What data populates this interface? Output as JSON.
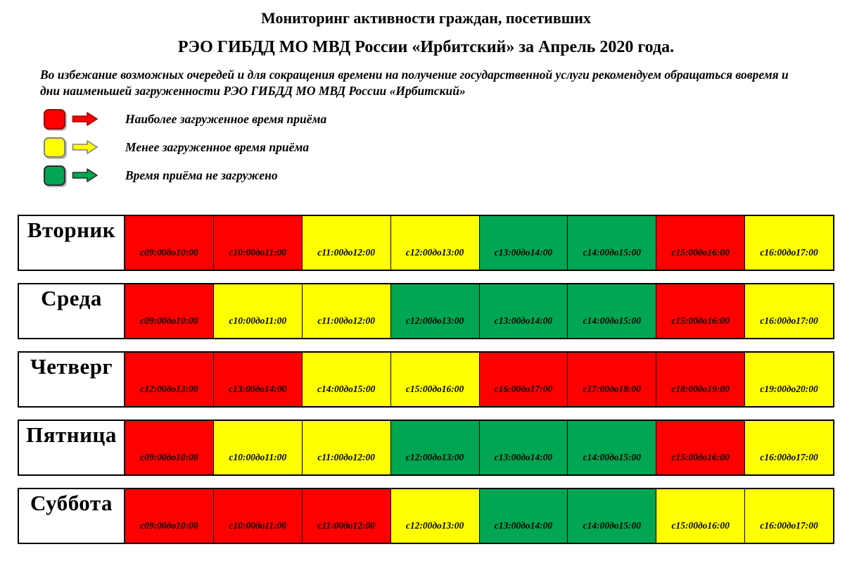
{
  "title": {
    "line1": "Мониторинг активности граждан, посетивших",
    "line2": "РЭО ГИБДД МО МВД России «Ирбитский» за Апрель 2020 года."
  },
  "note": "Во избежание возможных очередей и для сокращения времени на получение государственной услуги рекомендуем обращаться вовремя и дни наименьшей загруженности РЭО ГИБДД МО МВД России «Ирбитский»",
  "colors": {
    "busy": "#FF0000",
    "less_busy": "#FFFF00",
    "free": "#00A651"
  },
  "legend": {
    "items": [
      {
        "id": "busiest",
        "label": "Наиболее загруженное время приёма",
        "color": "#FF0000",
        "outline": "#9C0000"
      },
      {
        "id": "less-busy",
        "label": "Менее загруженное время приёма",
        "color": "#FFFF00",
        "outline": "#808080"
      },
      {
        "id": "free",
        "label": "Время приёма не загружено",
        "color": "#00A651",
        "outline": "#2F2F2F"
      }
    ]
  },
  "chart_data": {
    "type": "heatmap",
    "title": "Мониторинг активности граждан, посетивших РЭО ГИБДД МО МВД России «Ирбитский» за Апрель 2020 года.",
    "status_legend": {
      "busy": "Наиболее загруженное время приёма",
      "less_busy": "Менее загруженное время приёма",
      "free": "Время приёма не загружено"
    },
    "days": [
      {
        "label": "Вторник",
        "slots": [
          {
            "time": "с09:00до10:00",
            "status": "busy"
          },
          {
            "time": "с10:00до11:00",
            "status": "busy"
          },
          {
            "time": "с11:00до12:00",
            "status": "less_busy"
          },
          {
            "time": "с12:00до13:00",
            "status": "less_busy"
          },
          {
            "time": "с13:00до14:00",
            "status": "free"
          },
          {
            "time": "с14:00до15:00",
            "status": "free"
          },
          {
            "time": "с15:00до16:00",
            "status": "busy"
          },
          {
            "time": "с16:00до17:00",
            "status": "less_busy"
          }
        ]
      },
      {
        "label": "Среда",
        "slots": [
          {
            "time": "с09:00до10:00",
            "status": "busy"
          },
          {
            "time": "с10:00до11:00",
            "status": "less_busy"
          },
          {
            "time": "с11:00до12:00",
            "status": "less_busy"
          },
          {
            "time": "с12:00до13:00",
            "status": "free"
          },
          {
            "time": "с13:00до14:00",
            "status": "free"
          },
          {
            "time": "с14:00до15:00",
            "status": "free"
          },
          {
            "time": "с15:00до16:00",
            "status": "busy"
          },
          {
            "time": "с16:00до17:00",
            "status": "less_busy"
          }
        ]
      },
      {
        "label": "Четверг",
        "slots": [
          {
            "time": "с12:00до13:00",
            "status": "busy"
          },
          {
            "time": "с13:00до14:00",
            "status": "busy"
          },
          {
            "time": "с14:00до15:00",
            "status": "less_busy"
          },
          {
            "time": "с15:00до16:00",
            "status": "less_busy"
          },
          {
            "time": "с16:00до17:00",
            "status": "busy"
          },
          {
            "time": "с17:00до18:00",
            "status": "busy"
          },
          {
            "time": "с18:00до19:00",
            "status": "busy"
          },
          {
            "time": "с19:00до20:00",
            "status": "less_busy"
          }
        ]
      },
      {
        "label": "Пятница",
        "slots": [
          {
            "time": "с09:00до10:00",
            "status": "busy"
          },
          {
            "time": "с10:00до11:00",
            "status": "less_busy"
          },
          {
            "time": "с11:00до12:00",
            "status": "less_busy"
          },
          {
            "time": "с12:00до13:00",
            "status": "free"
          },
          {
            "time": "с13:00до14:00",
            "status": "free"
          },
          {
            "time": "с14:00до15:00",
            "status": "free"
          },
          {
            "time": "с15:00до16:00",
            "status": "busy"
          },
          {
            "time": "с16:00до17:00",
            "status": "less_busy"
          }
        ]
      },
      {
        "label": "Суббота",
        "slots": [
          {
            "time": "с09:00до10:00",
            "status": "busy"
          },
          {
            "time": "с10:00до11:00",
            "status": "busy"
          },
          {
            "time": "с11:00до12:00",
            "status": "busy"
          },
          {
            "time": "с12:00до13:00",
            "status": "less_busy"
          },
          {
            "time": "с13:00до14:00",
            "status": "free"
          },
          {
            "time": "с14:00до15:00",
            "status": "free"
          },
          {
            "time": "с15:00до16:00",
            "status": "less_busy"
          },
          {
            "time": "с16:00до17:00",
            "status": "less_busy"
          }
        ]
      }
    ]
  }
}
